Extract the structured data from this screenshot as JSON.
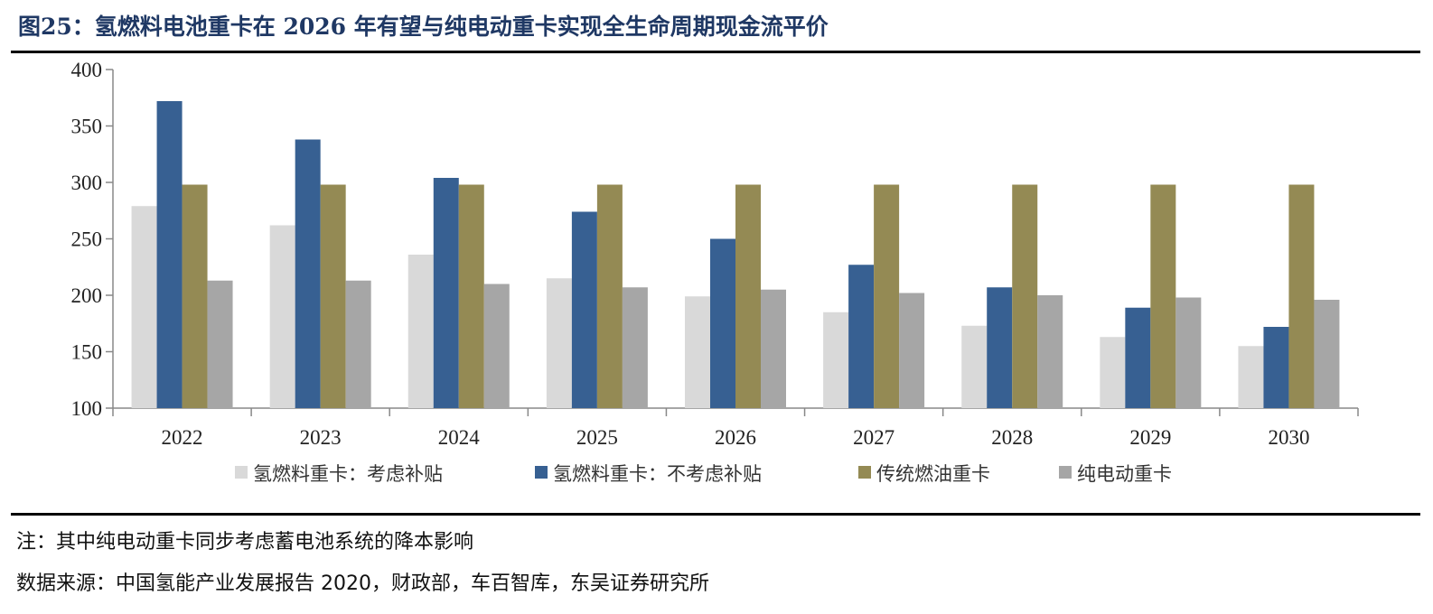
{
  "figure": {
    "title": "图25：氢燃料电池重卡在 2026 年有望与纯电动重卡实现全生命周期现金流平价",
    "note": "注：其中纯电动重卡同步考虑蓄电池系统的降本影响",
    "source": "数据来源：中国氢能产业发展报告 2020，财政部，车百智库，东吴证券研究所"
  },
  "chart_data": {
    "type": "bar",
    "title": "",
    "xlabel": "",
    "ylabel": "",
    "ylim": [
      100,
      400
    ],
    "yticks": [
      100,
      150,
      200,
      250,
      300,
      350,
      400
    ],
    "grid": false,
    "legend_position": "bottom",
    "categories": [
      "2022",
      "2023",
      "2024",
      "2025",
      "2026",
      "2027",
      "2028",
      "2029",
      "2030"
    ],
    "series": [
      {
        "name": "氢燃料重卡：考虑补贴",
        "color": "#d9d9d9",
        "values": [
          279,
          262,
          236,
          215,
          199,
          185,
          173,
          163,
          155
        ]
      },
      {
        "name": "氢燃料重卡：不考虑补贴",
        "color": "#376092",
        "values": [
          372,
          338,
          304,
          274,
          250,
          227,
          207,
          189,
          172
        ]
      },
      {
        "name": "传统燃油重卡",
        "color": "#948a54",
        "values": [
          298,
          298,
          298,
          298,
          298,
          298,
          298,
          298,
          298
        ]
      },
      {
        "name": "纯电动重卡",
        "color": "#a6a6a6",
        "values": [
          213,
          213,
          210,
          207,
          205,
          202,
          200,
          198,
          196
        ]
      }
    ]
  }
}
